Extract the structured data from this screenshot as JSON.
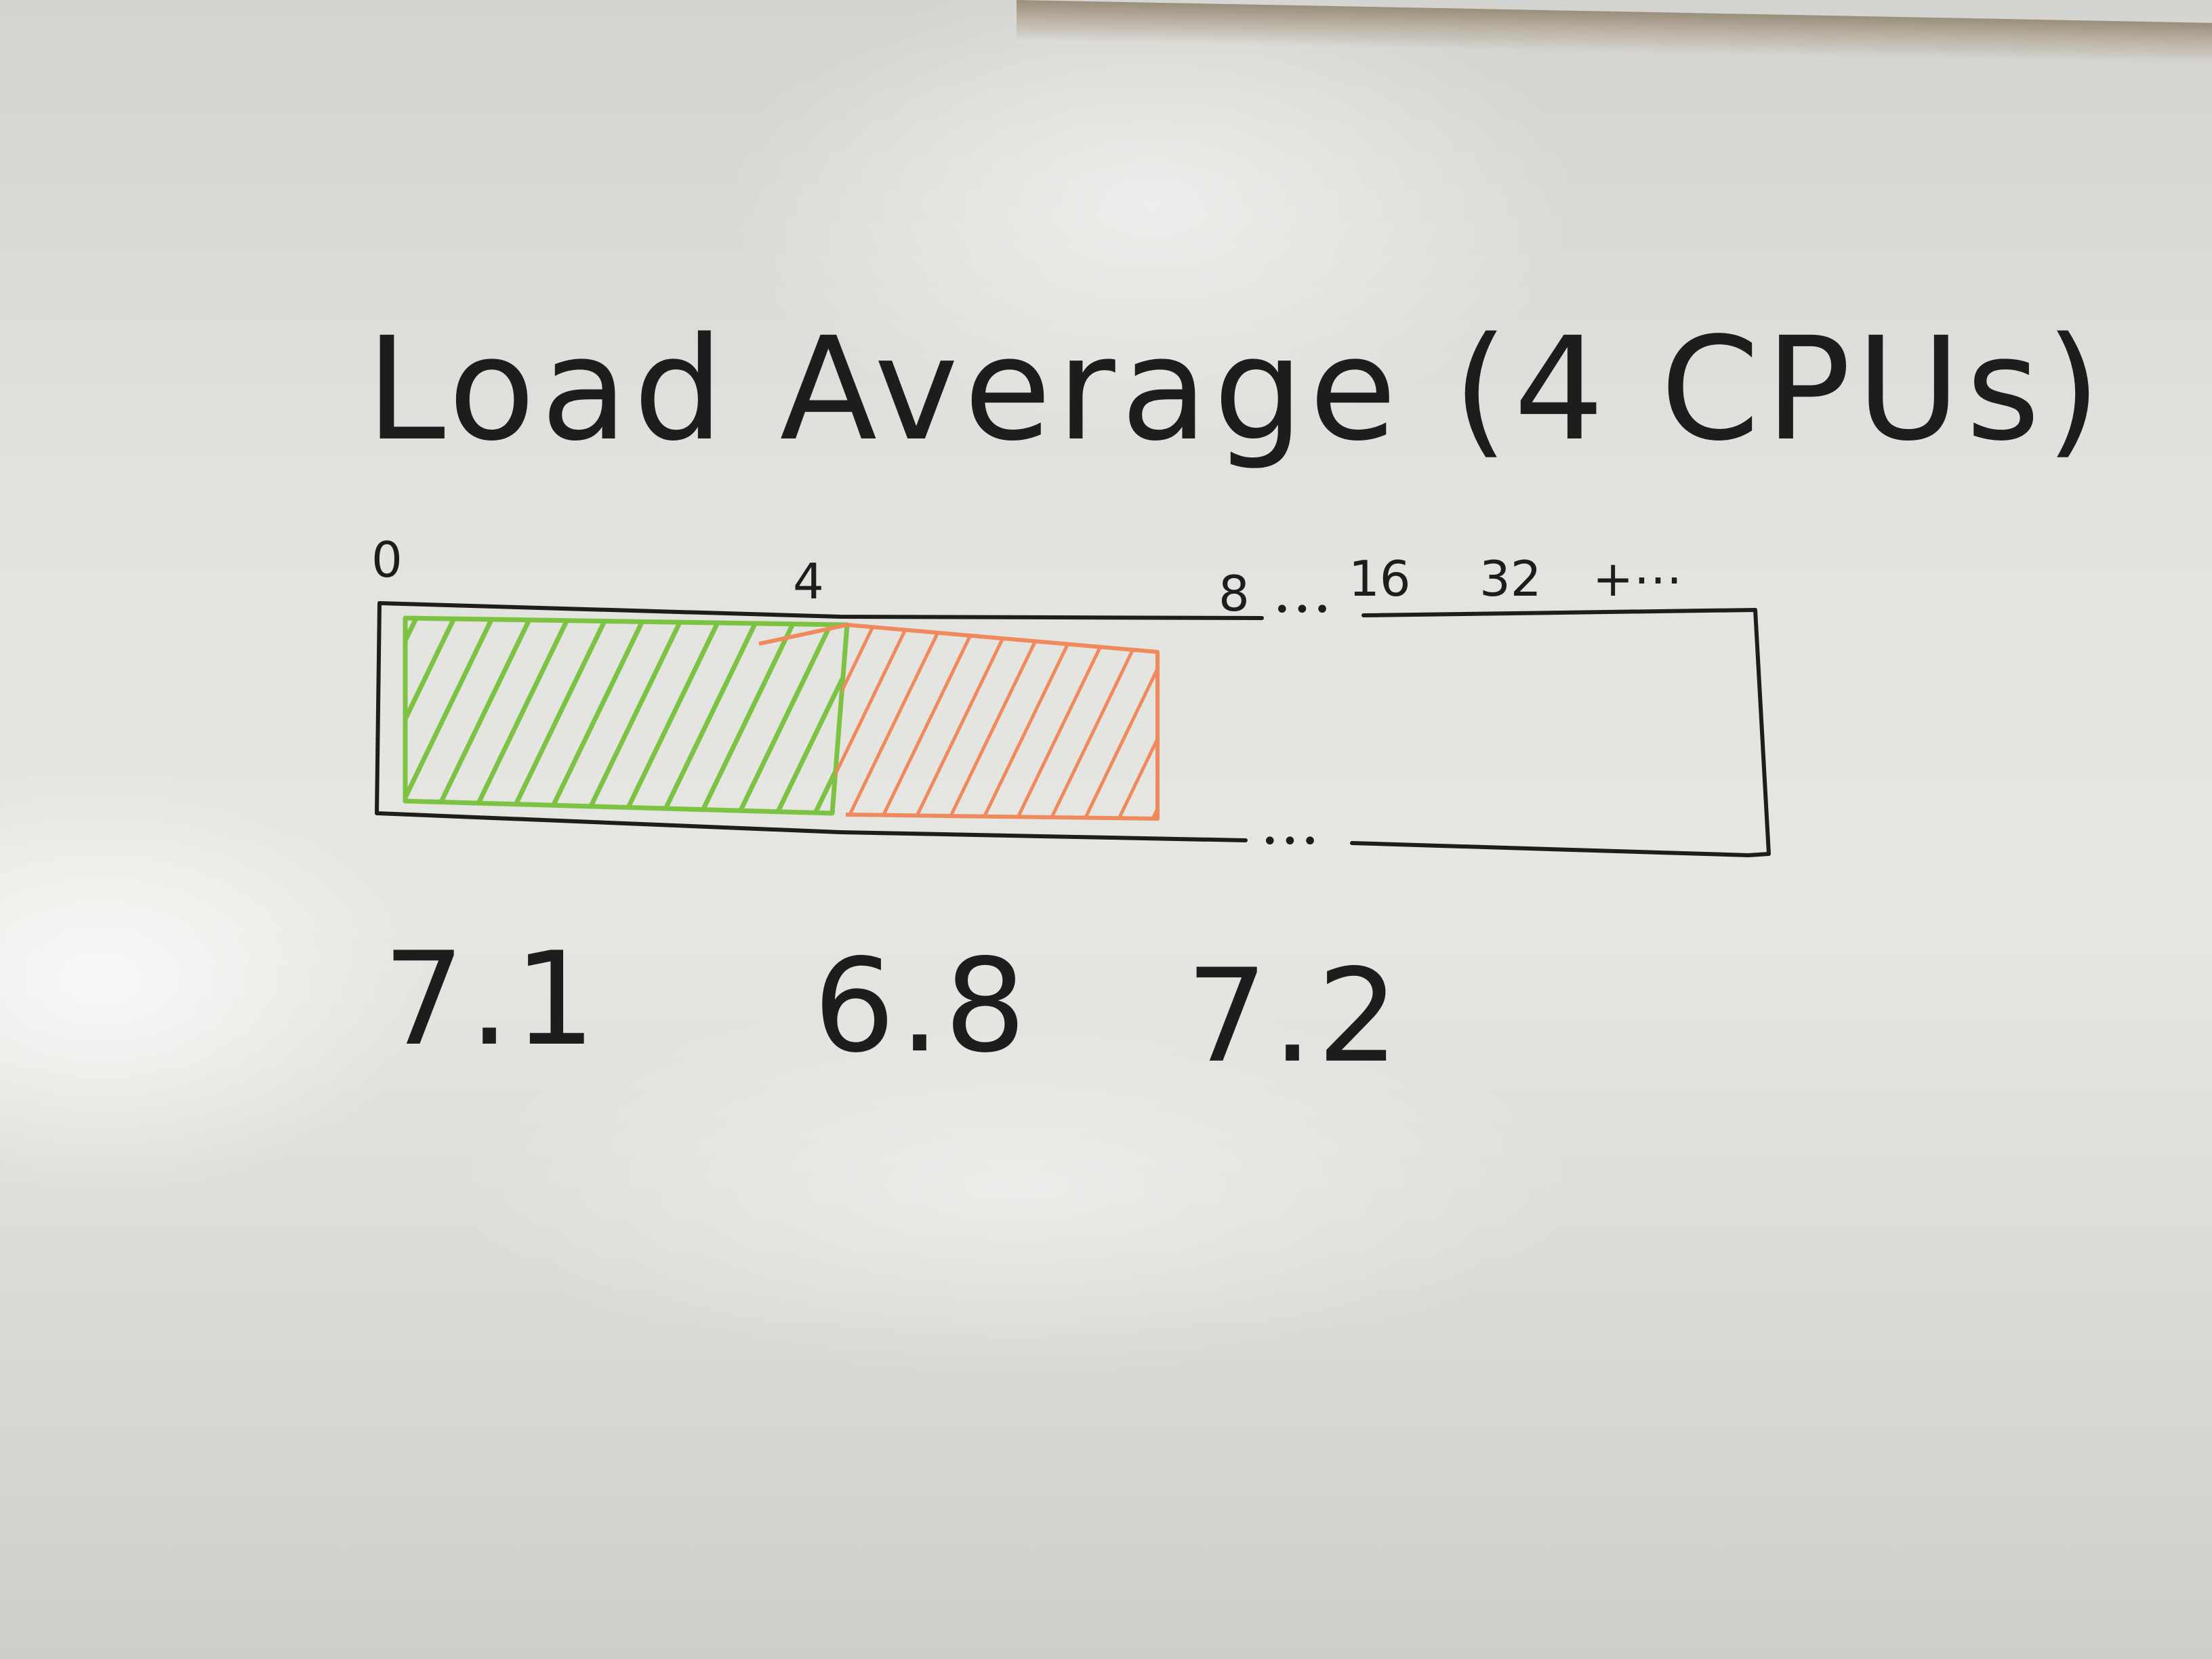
{
  "whiteboard": {
    "title": "Load Average (4 CPUs)",
    "scale_ticks": [
      "0",
      "4",
      "8",
      "16",
      "32",
      "+⋯"
    ],
    "gap_marker": "•••",
    "load_values": [
      "7.1",
      "6.8",
      "7.2"
    ],
    "bar": {
      "capacity_cpus": 4,
      "current_load": 7.1,
      "fill_colors": {
        "within_capacity": "#7cc243",
        "over_capacity": "#f08a5d"
      },
      "ink_color": "#1d1d1d"
    }
  }
}
